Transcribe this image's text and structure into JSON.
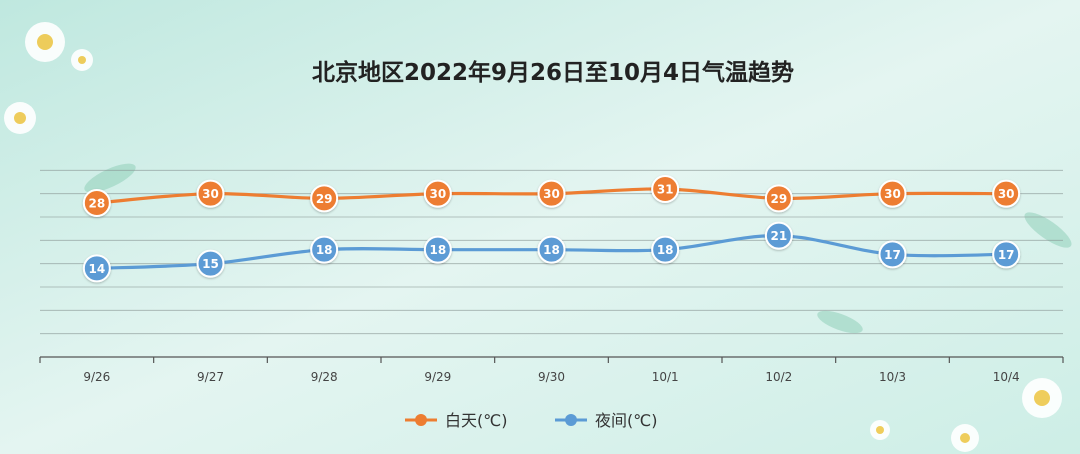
{
  "chart_data": {
    "type": "line",
    "title": "北京地区2022年9月26日至10月4日气温趋势",
    "categories": [
      "9/26",
      "9/27",
      "9/28",
      "9/29",
      "9/30",
      "10/1",
      "10/2",
      "10/3",
      "10/4"
    ],
    "series": [
      {
        "name": "白天(℃)",
        "color": "#ED7D31",
        "values": [
          28,
          30,
          29,
          30,
          30,
          31,
          29,
          30,
          30
        ]
      },
      {
        "name": "夜间(℃)",
        "color": "#5B9BD5",
        "values": [
          14,
          15,
          18,
          18,
          18,
          18,
          21,
          17,
          17
        ]
      }
    ],
    "ylim": [
      -5,
      40
    ],
    "grid": true,
    "legend_position": "bottom",
    "background_colors": [
      "#c8ece4",
      "#e6f6f2"
    ]
  }
}
